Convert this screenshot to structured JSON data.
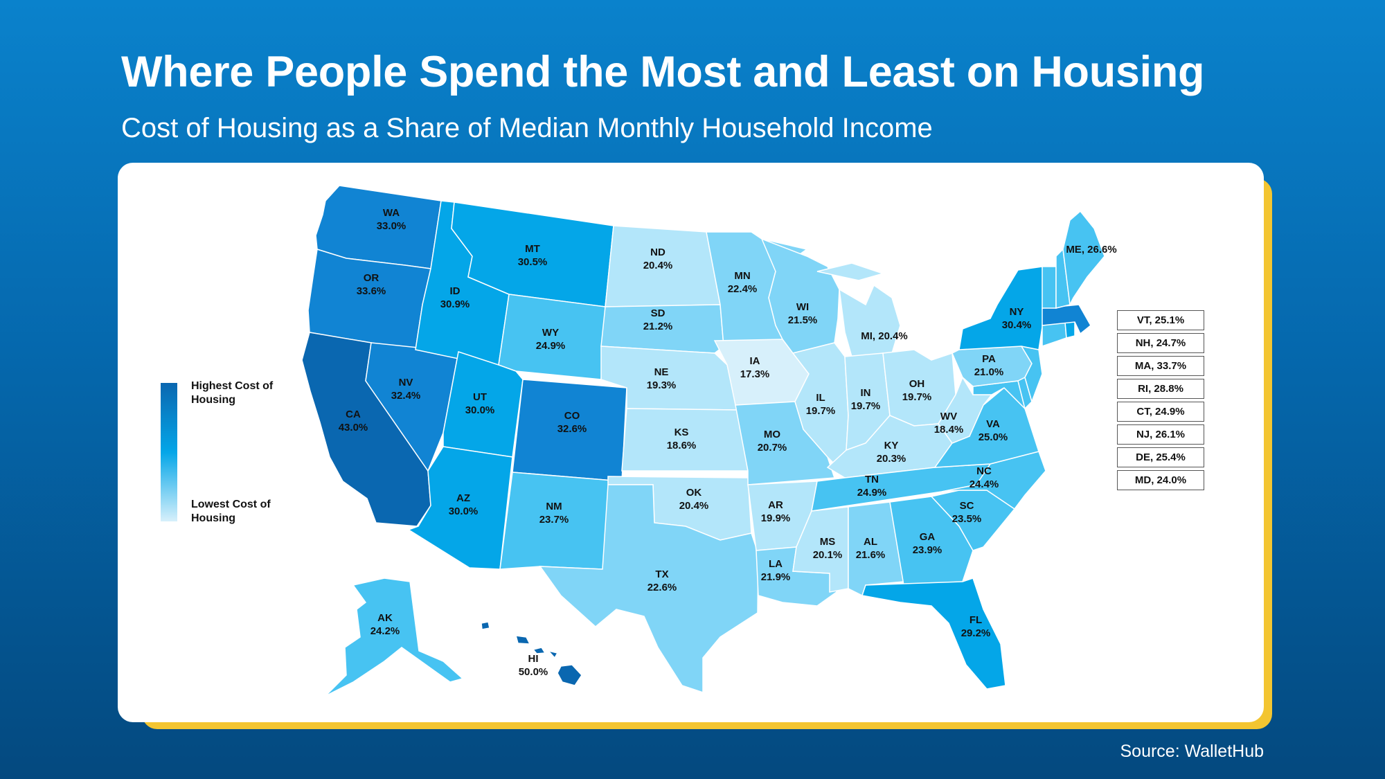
{
  "title": "Where People Spend the Most and Least on Housing",
  "subtitle": "Cost of Housing as a Share of Median Monthly Household Income",
  "source": "Source: WalletHub",
  "legend": {
    "high": "Highest Cost of Housing",
    "low": "Lowest Cost of Housing"
  },
  "colors": {
    "highest": "#0a67b0",
    "high": "#1184d3",
    "mid_high": "#04a6e8",
    "mid": "#47c3f2",
    "mid_low": "#80d5f7",
    "low": "#b3e6fa",
    "lowest": "#d7f0fb",
    "accent_frame": "#f3c531"
  },
  "states": {
    "WA": {
      "label": "WA",
      "value": "33.0%"
    },
    "OR": {
      "label": "OR",
      "value": "33.6%"
    },
    "CA": {
      "label": "CA",
      "value": "43.0%"
    },
    "NV": {
      "label": "NV",
      "value": "32.4%"
    },
    "ID": {
      "label": "ID",
      "value": "30.9%"
    },
    "MT": {
      "label": "MT",
      "value": "30.5%"
    },
    "WY": {
      "label": "WY",
      "value": "24.9%"
    },
    "UT": {
      "label": "UT",
      "value": "30.0%"
    },
    "CO": {
      "label": "CO",
      "value": "32.6%"
    },
    "AZ": {
      "label": "AZ",
      "value": "30.0%"
    },
    "NM": {
      "label": "NM",
      "value": "23.7%"
    },
    "ND": {
      "label": "ND",
      "value": "20.4%"
    },
    "SD": {
      "label": "SD",
      "value": "21.2%"
    },
    "NE": {
      "label": "NE",
      "value": "19.3%"
    },
    "KS": {
      "label": "KS",
      "value": "18.6%"
    },
    "OK": {
      "label": "OK",
      "value": "20.4%"
    },
    "TX": {
      "label": "TX",
      "value": "22.6%"
    },
    "MN": {
      "label": "MN",
      "value": "22.4%"
    },
    "IA": {
      "label": "IA",
      "value": "17.3%"
    },
    "MO": {
      "label": "MO",
      "value": "20.7%"
    },
    "AR": {
      "label": "AR",
      "value": "19.9%"
    },
    "LA": {
      "label": "LA",
      "value": "21.9%"
    },
    "WI": {
      "label": "WI",
      "value": "21.5%"
    },
    "IL": {
      "label": "IL",
      "value": "19.7%"
    },
    "MI": {
      "label": "MI, 20.4%"
    },
    "IN": {
      "label": "IN",
      "value": "19.7%"
    },
    "OH": {
      "label": "OH",
      "value": "19.7%"
    },
    "KY": {
      "label": "KY",
      "value": "20.3%"
    },
    "TN": {
      "label": "TN",
      "value": "24.9%"
    },
    "MS": {
      "label": "MS",
      "value": "20.1%"
    },
    "AL": {
      "label": "AL",
      "value": "21.6%"
    },
    "GA": {
      "label": "GA",
      "value": "23.9%"
    },
    "FL": {
      "label": "FL",
      "value": "29.2%"
    },
    "SC": {
      "label": "SC",
      "value": "23.5%"
    },
    "NC": {
      "label": "NC",
      "value": "24.4%"
    },
    "VA": {
      "label": "VA",
      "value": "25.0%"
    },
    "WV": {
      "label": "WV",
      "value": "18.4%"
    },
    "PA": {
      "label": "PA",
      "value": "21.0%"
    },
    "NY": {
      "label": "NY",
      "value": "30.4%"
    },
    "ME": {
      "label": "ME, 26.6%"
    },
    "AK": {
      "label": "AK",
      "value": "24.2%"
    },
    "HI": {
      "label": "HI",
      "value": "50.0%"
    }
  },
  "small_states": [
    {
      "label": "VT, 25.1%"
    },
    {
      "label": "NH, 24.7%"
    },
    {
      "label": "MA, 33.7%"
    },
    {
      "label": "RI, 28.8%"
    },
    {
      "label": "CT, 24.9%"
    },
    {
      "label": "NJ, 26.1%"
    },
    {
      "label": "DE, 25.4%"
    },
    {
      "label": "MD, 24.0%"
    }
  ]
}
